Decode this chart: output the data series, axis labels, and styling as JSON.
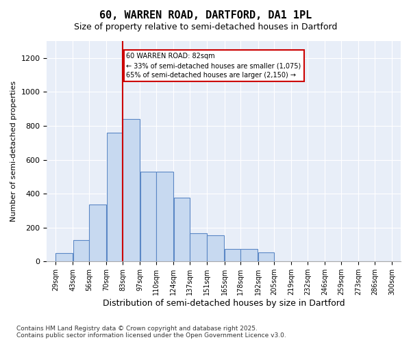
{
  "title1": "60, WARREN ROAD, DARTFORD, DA1 1PL",
  "title2": "Size of property relative to semi-detached houses in Dartford",
  "xlabel": "Distribution of semi-detached houses by size in Dartford",
  "ylabel": "Number of semi-detached properties",
  "footnote1": "Contains HM Land Registry data © Crown copyright and database right 2025.",
  "footnote2": "Contains public sector information licensed under the Open Government Licence v3.0.",
  "annotation_title": "60 WARREN ROAD: 82sqm",
  "annotation_line1": "← 33% of semi-detached houses are smaller (1,075)",
  "annotation_line2": "65% of semi-detached houses are larger (2,150) →",
  "bar_color": "#c7d9f0",
  "bar_edge_color": "#5a87c5",
  "vline_color": "#cc0000",
  "annotation_box_color": "#cc0000",
  "background_color": "#e8eef8",
  "bin_edges": [
    29,
    43,
    56,
    70,
    83,
    97,
    110,
    124,
    137,
    151,
    165,
    178,
    192,
    205,
    219,
    232,
    246,
    259,
    273,
    286,
    300
  ],
  "tick_labels": [
    "29sqm",
    "43sqm",
    "56sqm",
    "70sqm",
    "83sqm",
    "97sqm",
    "110sqm",
    "124sqm",
    "137sqm",
    "151sqm",
    "165sqm",
    "178sqm",
    "192sqm",
    "205sqm",
    "219sqm",
    "232sqm",
    "246sqm",
    "259sqm",
    "273sqm",
    "286sqm",
    "300sqm"
  ],
  "values": [
    50,
    125,
    335,
    760,
    840,
    530,
    530,
    375,
    165,
    155,
    75,
    75,
    55,
    0,
    0,
    0,
    0,
    0,
    0,
    0
  ],
  "vline_x": 83,
  "ylim": [
    0,
    1300
  ],
  "yticks": [
    0,
    200,
    400,
    600,
    800,
    1000,
    1200
  ]
}
